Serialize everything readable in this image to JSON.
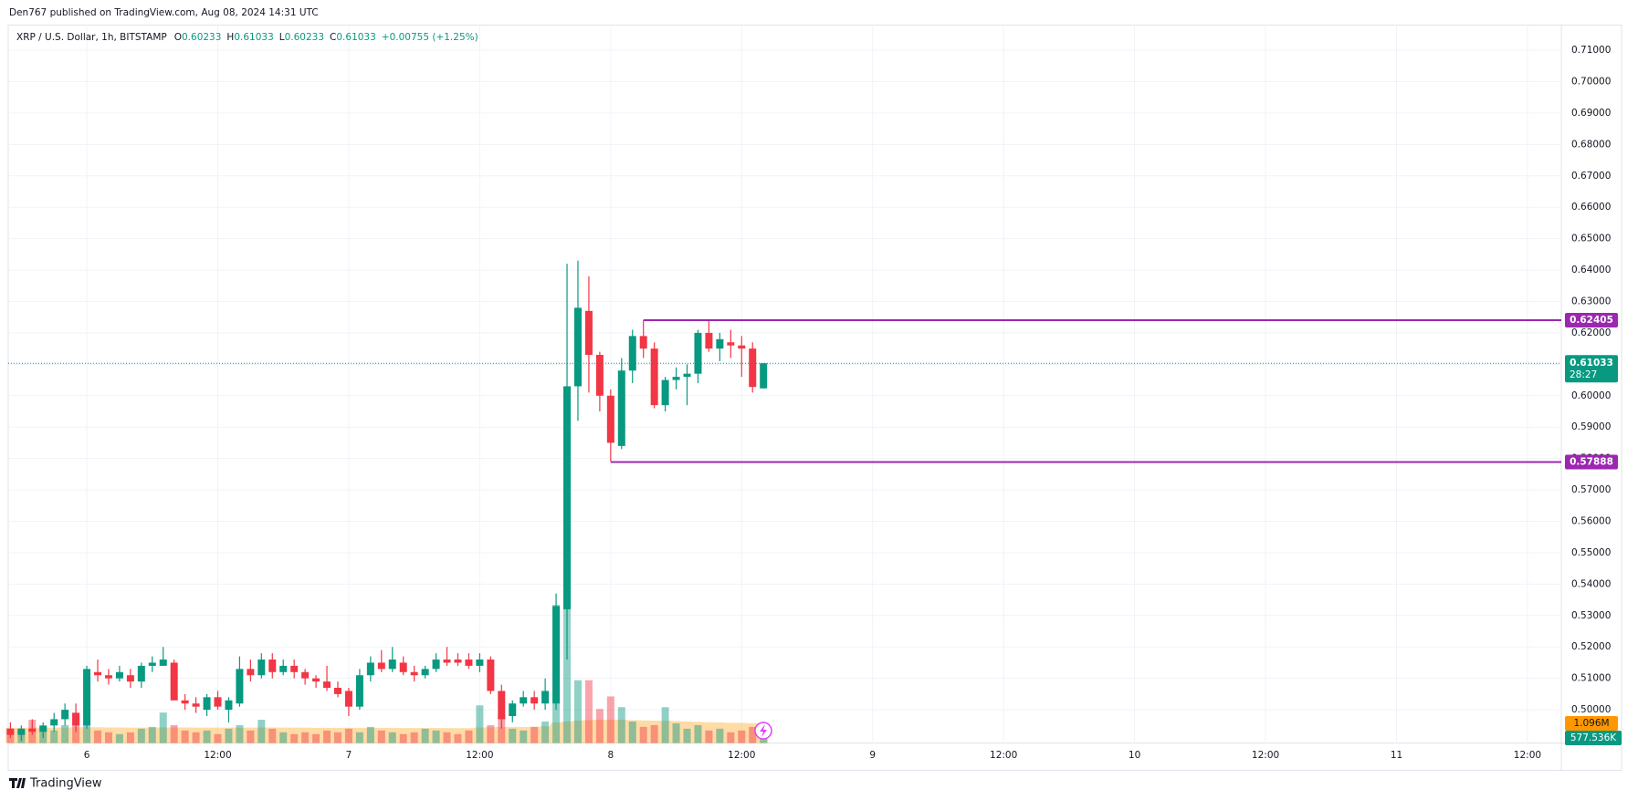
{
  "chart_data": {
    "type": "candlestick",
    "publisher": "Den767 published on TradingView.com, Aug 08, 2024 14:31 UTC",
    "symbol": "XRP / U.S. Dollar, 1h, BITSTAMP",
    "legend_keys": [
      "O",
      "H",
      "L",
      "C"
    ],
    "change": "+0.00755 (+1.25%)",
    "countdown": "28:27",
    "footer": "TradingView",
    "up_color": "#089981",
    "down_color": "#f23645",
    "ma_color": "#ff9800",
    "xlim": [
      -7.2,
      135.1
    ],
    "xticks": [
      {
        "value": 0,
        "label": "6"
      },
      {
        "value": 12,
        "label": "12:00"
      },
      {
        "value": 24,
        "label": "7"
      },
      {
        "value": 36,
        "label": "12:00"
      },
      {
        "value": 48,
        "label": "8"
      },
      {
        "value": 60,
        "label": "12:00"
      },
      {
        "value": 72,
        "label": "9"
      },
      {
        "value": 84,
        "label": "12:00"
      },
      {
        "value": 96,
        "label": "10"
      },
      {
        "value": 108,
        "label": "12:00"
      },
      {
        "value": 120,
        "label": "11"
      },
      {
        "value": 132,
        "label": "12:00"
      }
    ],
    "ylim": [
      0.4894,
      0.718
    ],
    "yticks": [
      {
        "value": 0.5,
        "label": "0.50000"
      },
      {
        "value": 0.51,
        "label": "0.51000"
      },
      {
        "value": 0.52,
        "label": "0.52000"
      },
      {
        "value": 0.53,
        "label": "0.53000"
      },
      {
        "value": 0.54,
        "label": "0.54000"
      },
      {
        "value": 0.55,
        "label": "0.55000"
      },
      {
        "value": 0.56,
        "label": "0.56000"
      },
      {
        "value": 0.57,
        "label": "0.57000"
      },
      {
        "value": 0.58,
        "label": "0.58000"
      },
      {
        "value": 0.59,
        "label": "0.59000"
      },
      {
        "value": 0.6,
        "label": "0.60000"
      },
      {
        "value": 0.61,
        "label": "0.61000"
      },
      {
        "value": 0.62,
        "label": "0.62000"
      },
      {
        "value": 0.63,
        "label": "0.63000"
      },
      {
        "value": 0.64,
        "label": "0.64000"
      },
      {
        "value": 0.65,
        "label": "0.65000"
      },
      {
        "value": 0.66,
        "label": "0.66000"
      },
      {
        "value": 0.67,
        "label": "0.67000"
      },
      {
        "value": 0.68,
        "label": "0.68000"
      },
      {
        "value": 0.69,
        "label": "0.69000"
      },
      {
        "value": 0.7,
        "label": "0.70000"
      },
      {
        "value": 0.71,
        "label": "0.71000"
      }
    ],
    "grid": true,
    "x": [
      -7,
      -6,
      -5,
      -4,
      -3,
      -2,
      -1,
      0,
      1,
      2,
      3,
      4,
      5,
      6,
      7,
      8,
      9,
      10,
      11,
      12,
      13,
      14,
      15,
      16,
      17,
      18,
      19,
      20,
      21,
      22,
      23,
      24,
      25,
      26,
      27,
      28,
      29,
      30,
      31,
      32,
      33,
      34,
      35,
      36,
      37,
      38,
      39,
      40,
      41,
      42,
      43,
      44,
      45,
      46,
      47,
      48,
      49,
      50,
      51,
      52,
      53,
      54,
      55,
      56,
      57,
      58,
      59,
      60,
      61,
      62
    ],
    "open": [
      0.494,
      0.492,
      0.494,
      0.493,
      0.495,
      0.497,
      0.499,
      0.495,
      0.512,
      0.511,
      0.51,
      0.511,
      0.509,
      0.514,
      0.514,
      0.515,
      0.503,
      0.502,
      0.5,
      0.504,
      0.5,
      0.502,
      0.513,
      0.511,
      0.516,
      0.512,
      0.514,
      0.512,
      0.51,
      0.509,
      0.507,
      0.506,
      0.501,
      0.511,
      0.515,
      0.513,
      0.515,
      0.512,
      0.511,
      0.513,
      0.516,
      0.516,
      0.516,
      0.514,
      0.516,
      0.506,
      0.498,
      0.502,
      0.504,
      0.502,
      0.502,
      0.532,
      0.603,
      0.627,
      0.613,
      0.6,
      0.584,
      0.608,
      0.619,
      0.615,
      0.597,
      0.605,
      0.606,
      0.607,
      0.62,
      0.615,
      0.617,
      0.616,
      0.615,
      0.60233
    ],
    "high": [
      0.496,
      0.495,
      0.497,
      0.496,
      0.499,
      0.502,
      0.502,
      0.514,
      0.516,
      0.513,
      0.514,
      0.513,
      0.515,
      0.517,
      0.52,
      0.516,
      0.505,
      0.504,
      0.505,
      0.506,
      0.504,
      0.517,
      0.516,
      0.518,
      0.518,
      0.516,
      0.516,
      0.513,
      0.511,
      0.514,
      0.509,
      0.507,
      0.513,
      0.517,
      0.519,
      0.52,
      0.517,
      0.514,
      0.514,
      0.518,
      0.52,
      0.518,
      0.518,
      0.518,
      0.517,
      0.508,
      0.503,
      0.506,
      0.506,
      0.51,
      0.537,
      0.642,
      0.643,
      0.638,
      0.614,
      0.602,
      0.612,
      0.621,
      0.624,
      0.617,
      0.606,
      0.609,
      0.61,
      0.621,
      0.624,
      0.62,
      0.621,
      0.619,
      0.617,
      0.61033
    ],
    "low": [
      0.491,
      0.49,
      0.492,
      0.491,
      0.493,
      0.495,
      0.493,
      0.494,
      0.509,
      0.508,
      0.509,
      0.507,
      0.507,
      0.512,
      0.514,
      0.503,
      0.5,
      0.499,
      0.498,
      0.5,
      0.496,
      0.501,
      0.509,
      0.51,
      0.51,
      0.511,
      0.51,
      0.508,
      0.507,
      0.506,
      0.504,
      0.498,
      0.5,
      0.509,
      0.512,
      0.512,
      0.511,
      0.509,
      0.51,
      0.512,
      0.514,
      0.514,
      0.513,
      0.512,
      0.505,
      0.494,
      0.496,
      0.501,
      0.5,
      0.5,
      0.5,
      0.516,
      0.592,
      0.601,
      0.595,
      0.579,
      0.583,
      0.604,
      0.612,
      0.596,
      0.595,
      0.602,
      0.597,
      0.604,
      0.614,
      0.611,
      0.612,
      0.606,
      0.601,
      0.60233
    ],
    "close": [
      0.492,
      0.494,
      0.493,
      0.495,
      0.497,
      0.5,
      0.495,
      0.513,
      0.511,
      0.51,
      0.512,
      0.509,
      0.514,
      0.515,
      0.516,
      0.503,
      0.502,
      0.501,
      0.504,
      0.501,
      0.503,
      0.513,
      0.511,
      0.516,
      0.512,
      0.514,
      0.512,
      0.51,
      0.509,
      0.507,
      0.505,
      0.501,
      0.511,
      0.515,
      0.513,
      0.516,
      0.512,
      0.511,
      0.513,
      0.516,
      0.515,
      0.515,
      0.514,
      0.516,
      0.506,
      0.497,
      0.502,
      0.504,
      0.502,
      0.506,
      0.533,
      0.603,
      0.628,
      0.613,
      0.6,
      0.585,
      0.608,
      0.619,
      0.615,
      0.597,
      0.605,
      0.606,
      0.607,
      0.62,
      0.615,
      0.618,
      0.616,
      0.615,
      0.60278,
      0.61033
    ],
    "vlim": [
      0,
      40000000
    ],
    "volume": [
      600000,
      700000,
      1300000,
      800000,
      700000,
      1000000,
      1700000,
      1100000,
      700000,
      600000,
      500000,
      600000,
      800000,
      900000,
      1700000,
      1000000,
      700000,
      600000,
      700000,
      500000,
      800000,
      1000000,
      700000,
      1300000,
      800000,
      600000,
      500000,
      600000,
      500000,
      700000,
      600000,
      800000,
      600000,
      900000,
      700000,
      600000,
      500000,
      600000,
      800000,
      700000,
      600000,
      500000,
      700000,
      2100000,
      1000000,
      1600000,
      800000,
      700000,
      900000,
      1200000,
      7700000,
      10000000,
      3500000,
      3500000,
      1900000,
      2600000,
      2000000,
      1200000,
      900000,
      1000000,
      2000000,
      1100000,
      800000,
      1000000,
      700000,
      800000,
      600000,
      700000,
      900000,
      577536
    ],
    "volume_ma": [
      850000,
      850000,
      860000,
      860000,
      860000,
      870000,
      880000,
      880000,
      880000,
      870000,
      870000,
      860000,
      860000,
      860000,
      870000,
      870000,
      870000,
      860000,
      860000,
      860000,
      860000,
      860000,
      860000,
      870000,
      870000,
      860000,
      860000,
      860000,
      850000,
      850000,
      850000,
      850000,
      850000,
      850000,
      850000,
      850000,
      840000,
      840000,
      840000,
      840000,
      840000,
      830000,
      830000,
      870000,
      880000,
      900000,
      900000,
      900000,
      910000,
      930000,
      1150000,
      1200000,
      1250000,
      1280000,
      1300000,
      1300000,
      1300000,
      1280000,
      1260000,
      1250000,
      1250000,
      1230000,
      1200000,
      1180000,
      1160000,
      1150000,
      1130000,
      1120000,
      1110000,
      1096000
    ],
    "volume_last_label": "577.536K",
    "volume_ma_last_label": "1.096M",
    "hlines": [
      {
        "value": 0.62405,
        "start": 51,
        "color": "#9c27b0"
      },
      {
        "value": 0.57888,
        "start": 48,
        "color": "#9c27b0"
      }
    ]
  }
}
